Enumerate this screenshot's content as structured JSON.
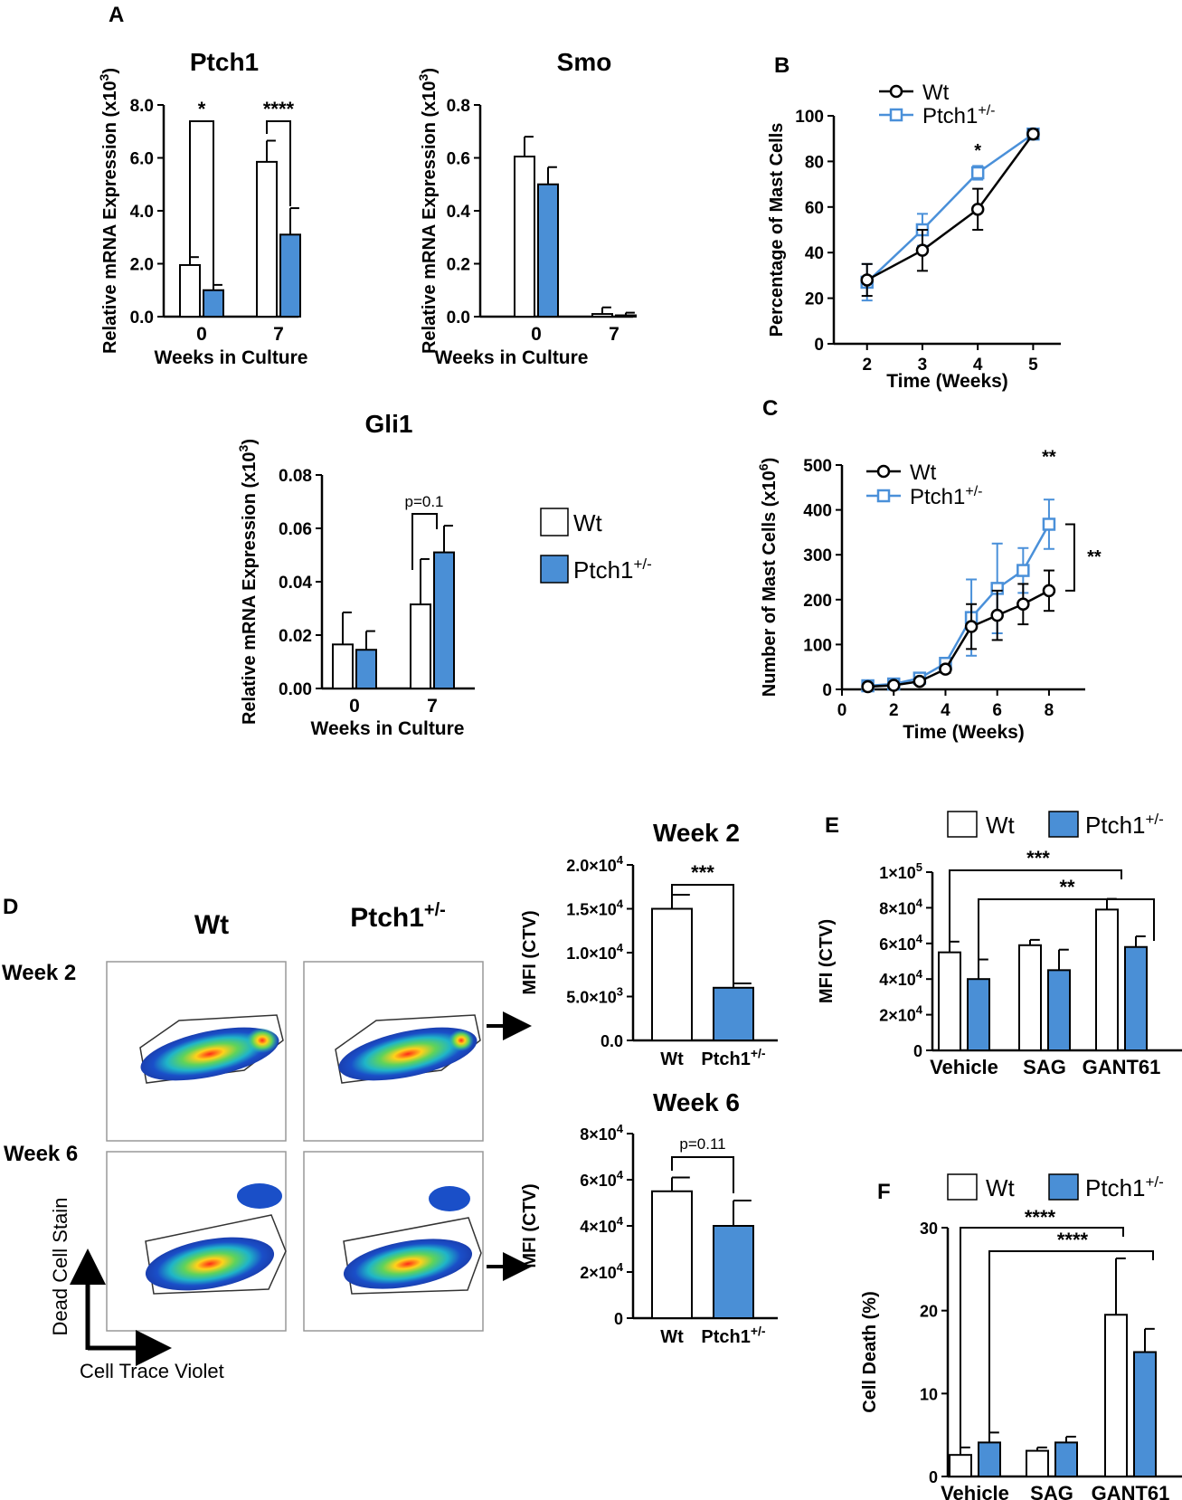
{
  "colors": {
    "wt_fill": "#ffffff",
    "mut_fill": "#4a8fd6",
    "axis": "#000000",
    "line_mut": "#4a90d9"
  },
  "panel_letters": {
    "A": "A",
    "B": "B",
    "C": "C",
    "D": "D",
    "E": "E",
    "F": "F"
  },
  "legend": {
    "wt": "Wt",
    "mut_base": "Ptch1",
    "mut_sup": "+/-"
  },
  "flow": {
    "col_wt": "Wt",
    "col_mut_base": "Ptch1",
    "col_mut_sup": "+/-",
    "row1": "Week 2",
    "row2": "Week 6",
    "y_axis": "Dead Cell Stain",
    "x_axis": "Cell Trace Violet"
  },
  "chart_data": [
    {
      "id": "ptch1",
      "type": "bar",
      "title": "Ptch1",
      "ylabel": "Relative mRNA Expression (x10³)",
      "xlabel": "Weeks in Culture",
      "categories": [
        "0",
        "7"
      ],
      "ylim": [
        0,
        8
      ],
      "yticks": [
        "0.0",
        "2.0",
        "4.0",
        "6.0",
        "8.0"
      ],
      "series": [
        {
          "name": "Wt",
          "values": [
            1.95,
            5.85
          ],
          "err": [
            0.3,
            0.8
          ]
        },
        {
          "name": "Ptch1+/-",
          "values": [
            1.0,
            3.1
          ],
          "err": [
            0.2,
            1.0
          ]
        }
      ],
      "annotations": [
        "*",
        "****"
      ]
    },
    {
      "id": "smo",
      "type": "bar",
      "title": "Smo",
      "ylabel": "Relative mRNA Expression (x10³)",
      "xlabel": "Weeks in Culture",
      "categories": [
        "0",
        "7"
      ],
      "ylim": [
        0,
        0.8
      ],
      "yticks": [
        "0.0",
        "0.2",
        "0.4",
        "0.6",
        "0.8"
      ],
      "series": [
        {
          "name": "Wt",
          "values": [
            0.605,
            0.01
          ],
          "err": [
            0.075,
            0.025
          ]
        },
        {
          "name": "Ptch1+/-",
          "values": [
            0.5,
            0.005
          ],
          "err": [
            0.065,
            0.01
          ]
        }
      ]
    },
    {
      "id": "gli1",
      "type": "bar",
      "title": "Gli1",
      "ylabel": "Relative mRNA Expression (x10³)",
      "xlabel": "Weeks in Culture",
      "categories": [
        "0",
        "7"
      ],
      "ylim": [
        0,
        0.08
      ],
      "yticks": [
        "0.00",
        "0.02",
        "0.04",
        "0.06",
        "0.08"
      ],
      "series": [
        {
          "name": "Wt",
          "values": [
            0.0165,
            0.0315
          ],
          "err": [
            0.012,
            0.017
          ]
        },
        {
          "name": "Ptch1+/-",
          "values": [
            0.0145,
            0.051
          ],
          "err": [
            0.007,
            0.01
          ]
        }
      ],
      "annotations": [
        "p=0.1"
      ]
    },
    {
      "id": "b_line",
      "type": "line",
      "ylabel": "Percentage of Mast Cells",
      "xlabel": "Time  (Weeks)",
      "x": [
        2,
        3,
        4,
        5
      ],
      "xlim": [
        1.4,
        5.5
      ],
      "ylim": [
        0,
        100
      ],
      "yticks": [
        "0",
        "20",
        "40",
        "60",
        "80",
        "100"
      ],
      "xticks": [
        "2",
        "3",
        "4",
        "5"
      ],
      "series": [
        {
          "name": "Wt",
          "values": [
            28,
            41,
            59,
            92
          ],
          "err": [
            7,
            9,
            9,
            2
          ]
        },
        {
          "name": "Ptch1+/-",
          "values": [
            27,
            50,
            75,
            92
          ],
          "err": [
            8,
            7,
            3,
            2
          ]
        }
      ],
      "annotations": [
        "*"
      ]
    },
    {
      "id": "c_line",
      "type": "line",
      "ylabel": "Number of Mast Cells (x10⁶)",
      "xlabel": "Time (Weeks)",
      "x": [
        1,
        2,
        3,
        4,
        5,
        6,
        7,
        8
      ],
      "xlim": [
        0,
        9.4
      ],
      "ylim": [
        0,
        500
      ],
      "yticks": [
        "0",
        "100",
        "200",
        "300",
        "400",
        "500"
      ],
      "xticks": [
        "0",
        "2",
        "4",
        "6",
        "8"
      ],
      "series": [
        {
          "name": "Wt",
          "values": [
            6,
            9,
            18,
            45,
            140,
            165,
            190,
            220
          ],
          "err": [
            3,
            3,
            5,
            8,
            50,
            55,
            45,
            45
          ]
        },
        {
          "name": "Ptch1+/-",
          "values": [
            8,
            12,
            25,
            58,
            160,
            225,
            265,
            368
          ],
          "err": [
            3,
            4,
            6,
            10,
            85,
            100,
            50,
            55
          ]
        }
      ],
      "annotations": [
        "**",
        "**"
      ]
    },
    {
      "id": "d_week2",
      "type": "bar",
      "title": "Week 2",
      "ylabel": "MFI (CTV)",
      "categories": [
        "Wt",
        "Ptch1+/-"
      ],
      "ylim": [
        0,
        20000
      ],
      "yticks": [
        "0.0",
        "5.0×10³",
        "1.0×10⁴",
        "1.5×10⁴",
        "2.0×10⁴"
      ],
      "values": [
        15000,
        6000
      ],
      "err": [
        1600,
        500
      ],
      "annotations": [
        "***"
      ]
    },
    {
      "id": "d_week6",
      "type": "bar",
      "title": "Week 6",
      "ylabel": "MFI (CTV)",
      "categories": [
        "Wt",
        "Ptch1+/-"
      ],
      "ylim": [
        0,
        80000
      ],
      "yticks": [
        "0",
        "2×10⁴",
        "4×10⁴",
        "6×10⁴",
        "8×10⁴"
      ],
      "values": [
        55000,
        40000
      ],
      "err": [
        6000,
        11000
      ],
      "annotations": [
        "p=0.11"
      ]
    },
    {
      "id": "e_bar",
      "type": "bar",
      "ylabel": "MFI (CTV)",
      "categories": [
        "Vehicle",
        "SAG",
        "GANT61"
      ],
      "ylim": [
        0,
        100000
      ],
      "yticks": [
        "0",
        "2×10⁴",
        "4×10⁴",
        "6×10⁴",
        "8×10⁴",
        "1×10⁵"
      ],
      "series": [
        {
          "name": "Wt",
          "values": [
            55000,
            59000,
            79000
          ],
          "err": [
            6000,
            3000,
            6000
          ]
        },
        {
          "name": "Ptch1+/-",
          "values": [
            40000,
            45000,
            58000
          ],
          "err": [
            11000,
            11500,
            6000
          ]
        }
      ],
      "annotations": [
        "***",
        "**"
      ]
    },
    {
      "id": "f_bar",
      "type": "bar",
      "ylabel": "Cell Death (%)",
      "categories": [
        "Vehicle",
        "SAG",
        "GANT61"
      ],
      "ylim": [
        0,
        30
      ],
      "yticks": [
        "0",
        "10",
        "20",
        "30"
      ],
      "series": [
        {
          "name": "Wt",
          "values": [
            2.6,
            3.1,
            19.5
          ],
          "err": [
            0.9,
            0.4,
            6.8
          ]
        },
        {
          "name": "Ptch1+/-",
          "values": [
            4.1,
            4.1,
            15.0
          ],
          "err": [
            1.2,
            0.7,
            2.8
          ]
        }
      ],
      "annotations": [
        "****",
        "****"
      ]
    }
  ]
}
